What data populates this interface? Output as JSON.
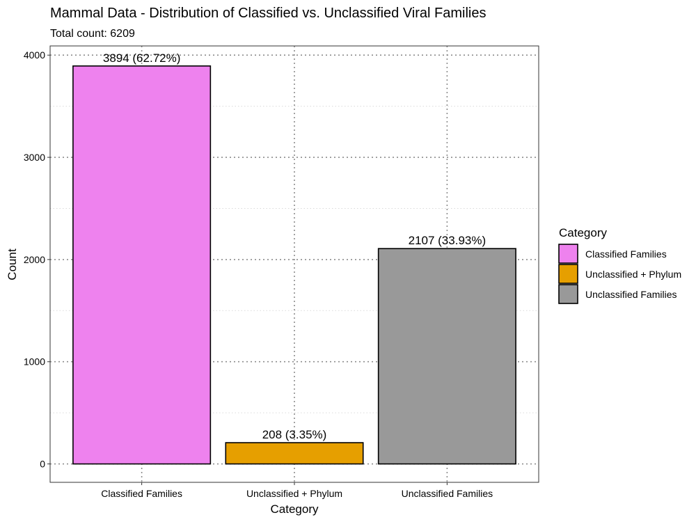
{
  "chart_data": {
    "type": "bar",
    "title": "Mammal Data - Distribution of Classified vs. Unclassified Viral Families",
    "subtitle": "Total count: 6209",
    "xlabel": "Category",
    "ylabel": "Count",
    "categories": [
      "Classified Families",
      "Unclassified + Phylum",
      "Unclassified Families"
    ],
    "values": [
      3894,
      208,
      2107
    ],
    "data_labels": [
      "3894 (62.72%)",
      "208 (3.35%)",
      "2107 (33.93%)"
    ],
    "colors": [
      "#EE82EE",
      "#E69F00",
      "#999999"
    ],
    "ylim": [
      -180,
      4090
    ],
    "yticks": [
      0,
      1000,
      2000,
      3000,
      4000
    ],
    "grid": true,
    "grid_style": "dotted",
    "legend": {
      "title": "Category",
      "position": "right",
      "entries": [
        "Classified Families",
        "Unclassified + Phylum",
        "Unclassified Families"
      ]
    }
  }
}
